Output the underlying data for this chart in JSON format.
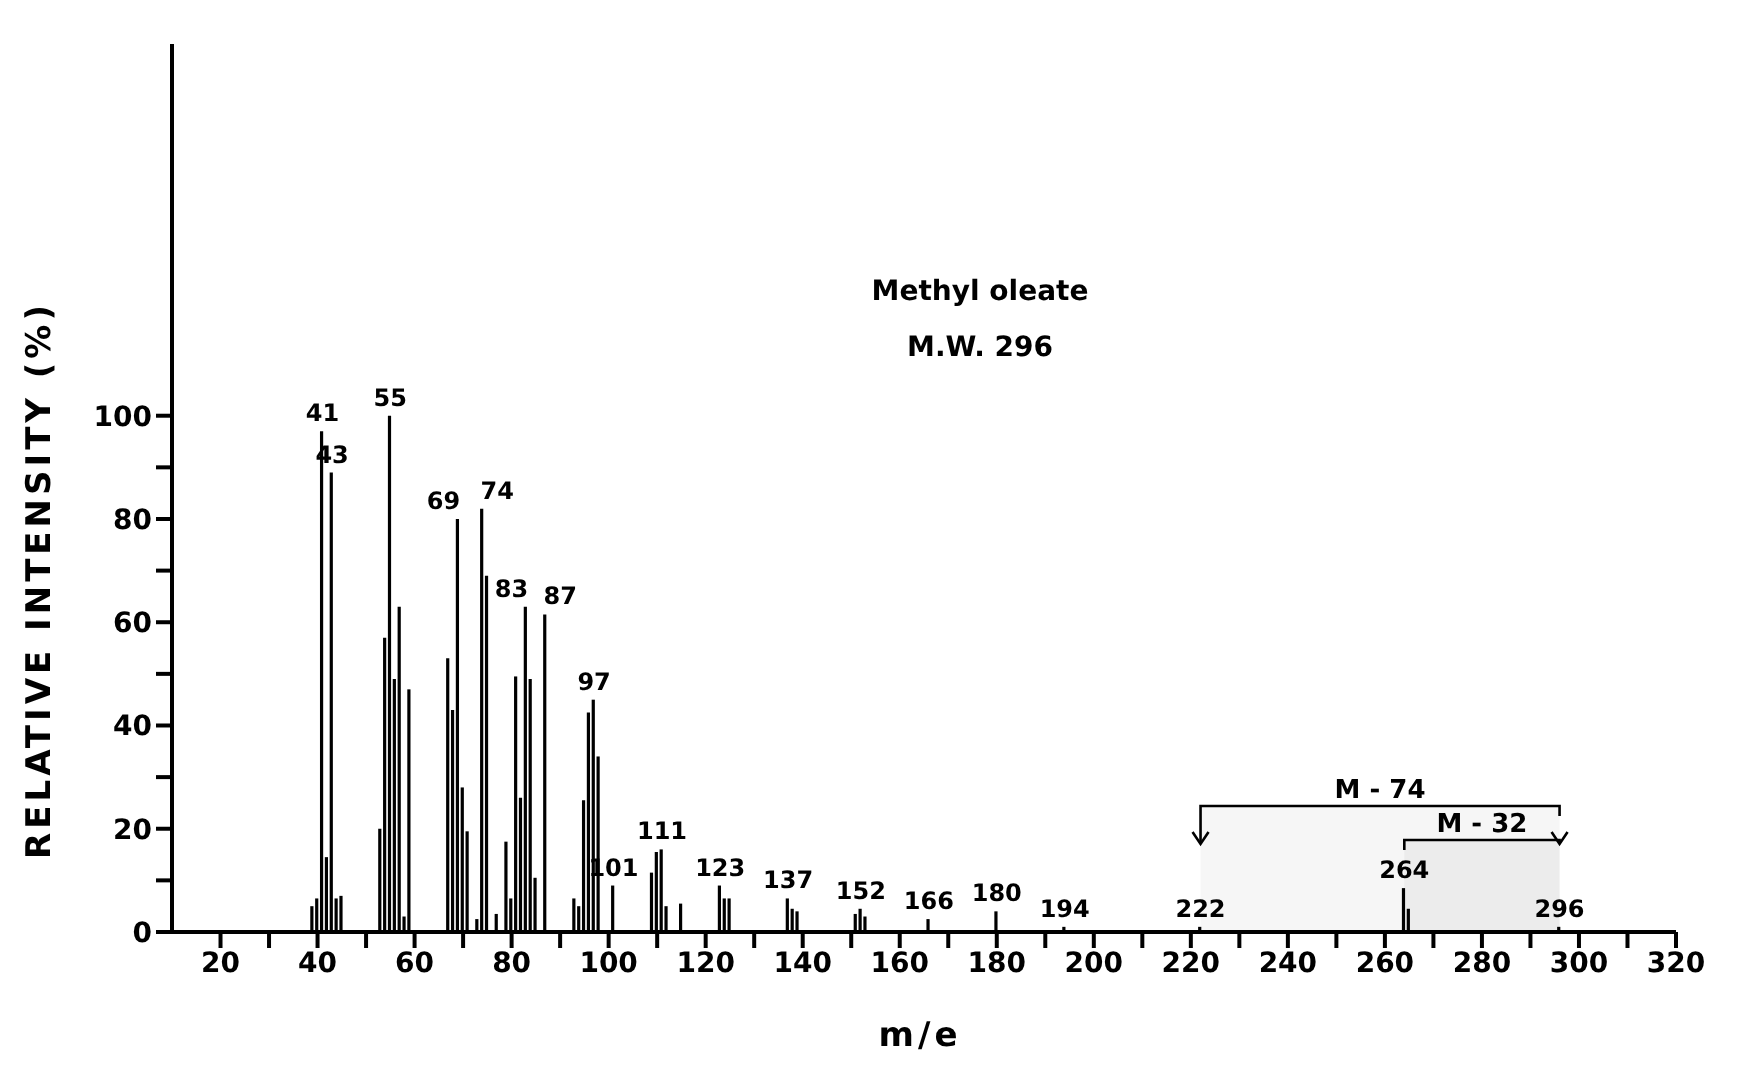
{
  "chart_data": {
    "type": "bar",
    "title": "Methyl oleate",
    "subtitle": "M.W. 296",
    "xlabel": "m/e",
    "ylabel": "RELATIVE INTENSITY (%)",
    "x": [
      39,
      40,
      41,
      42,
      43,
      44,
      45,
      53,
      54,
      55,
      56,
      57,
      58,
      59,
      67,
      68,
      69,
      70,
      71,
      73,
      74,
      75,
      77,
      79,
      80,
      81,
      82,
      83,
      84,
      85,
      87,
      93,
      94,
      95,
      96,
      97,
      98,
      101,
      109,
      110,
      111,
      112,
      115,
      123,
      124,
      125,
      137,
      138,
      139,
      151,
      152,
      153,
      166,
      180,
      194,
      222,
      264,
      265,
      296
    ],
    "values": [
      5,
      6.5,
      97,
      14.5,
      89,
      6.5,
      7,
      20,
      57,
      100,
      49,
      63,
      3,
      47,
      53,
      43,
      80,
      28,
      19.5,
      2.5,
      82,
      69,
      3.5,
      17.5,
      6.5,
      49.5,
      26,
      63,
      49,
      10.5,
      61.5,
      6.5,
      5,
      25.5,
      42.5,
      45,
      34,
      9,
      11.5,
      15.5,
      16,
      5,
      5.5,
      9,
      6.5,
      6.5,
      6.5,
      4.5,
      4,
      3.5,
      4.5,
      3,
      2.5,
      4,
      1,
      1,
      8.5,
      4.5,
      1
    ],
    "color": "#000000",
    "xlim": [
      10,
      320
    ],
    "xticks": [
      20,
      {
        "value": 30,
        "label": null
      },
      40,
      {
        "value": 50,
        "label": null
      },
      60,
      {
        "value": 70,
        "label": null
      },
      80,
      {
        "value": 90,
        "label": null
      },
      100,
      {
        "value": 110,
        "label": null
      },
      120,
      {
        "value": 130,
        "label": null
      },
      140,
      {
        "value": 150,
        "label": null
      },
      160,
      {
        "value": 170,
        "label": null
      },
      180,
      {
        "value": 190,
        "label": null
      },
      200,
      {
        "value": 210,
        "label": null
      },
      220,
      {
        "value": 230,
        "label": null
      },
      240,
      {
        "value": 250,
        "label": null
      },
      260,
      {
        "value": 270,
        "label": null
      },
      280,
      {
        "value": 290,
        "label": null
      },
      300,
      {
        "value": 310,
        "label": null
      },
      320
    ],
    "ylim": [
      0,
      172
    ],
    "yticks": [
      0,
      {
        "value": 10,
        "label": null
      },
      20,
      {
        "value": 30,
        "label": null
      },
      40,
      {
        "value": 50,
        "label": null
      },
      60,
      {
        "value": 70,
        "label": null
      },
      80,
      {
        "value": 90,
        "label": null
      },
      100
    ],
    "grid": false,
    "legend": false,
    "bands": [
      {
        "axis": "x",
        "from": 296,
        "to": 222,
        "label": "M - 74",
        "color": "#f0f0f0"
      },
      {
        "axis": "x",
        "from": 264,
        "to": 296,
        "label": "M - 32",
        "color": "#e6e6e6"
      }
    ],
    "annotations": [
      {
        "text": "41",
        "x": 41,
        "y": 97
      },
      {
        "text": "43",
        "x": 43,
        "y": 89
      },
      {
        "text": "55",
        "x": 55,
        "y": 100
      },
      {
        "text": "69",
        "x": 69,
        "y": 80
      },
      {
        "text": "74",
        "x": 74,
        "y": 82
      },
      {
        "text": "83",
        "x": 83,
        "y": 63
      },
      {
        "text": "87",
        "x": 87,
        "y": 61.5
      },
      {
        "text": "97",
        "x": 97,
        "y": 45
      },
      {
        "text": "101",
        "x": 101,
        "y": 9
      },
      {
        "text": "111",
        "x": 111,
        "y": 16
      },
      {
        "text": "123",
        "x": 123,
        "y": 9
      },
      {
        "text": "137",
        "x": 137,
        "y": 6.5
      },
      {
        "text": "152",
        "x": 152,
        "y": 4.5
      },
      {
        "text": "166",
        "x": 166,
        "y": 2.5
      },
      {
        "text": "180",
        "x": 180,
        "y": 4
      },
      {
        "text": "194",
        "x": 194,
        "y": 1
      },
      {
        "text": "222",
        "x": 222,
        "y": 1
      },
      {
        "text": "264",
        "x": 264,
        "y": 8.5
      },
      {
        "text": "296",
        "x": 296,
        "y": 1
      }
    ]
  }
}
